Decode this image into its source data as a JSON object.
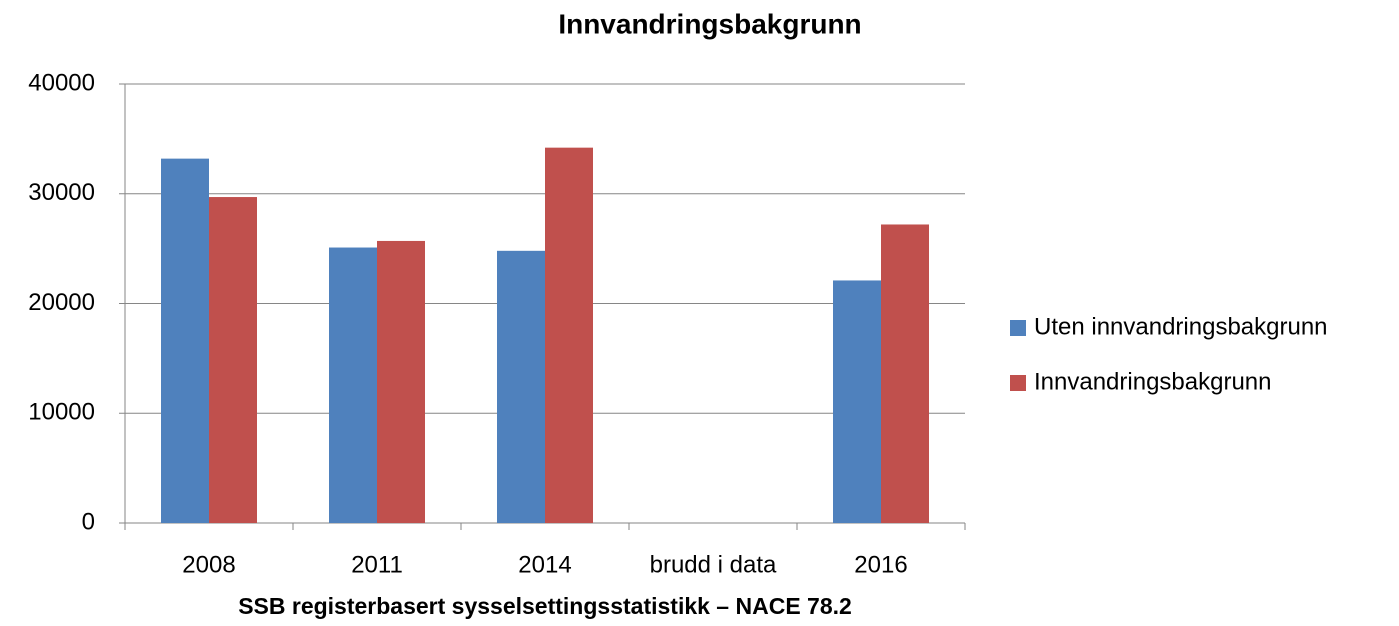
{
  "chart_data": {
    "type": "bar",
    "title": "Innvandringsbakgrunn",
    "x_label": "SSB registerbasert sysselsettingsstatistikk – NACE 78.2",
    "categories": [
      "2008",
      "2011",
      "2014",
      "brudd i data",
      "2016"
    ],
    "series": [
      {
        "name": "Uten innvandringsbakgrunn",
        "color": "#4f81bd",
        "values": [
          33200,
          25100,
          24800,
          null,
          22100
        ]
      },
      {
        "name": "Innvandringsbakgrunn",
        "color": "#c0504d",
        "values": [
          29700,
          25700,
          34200,
          null,
          27200
        ]
      }
    ],
    "ylim": [
      0,
      40000
    ],
    "yticks": [
      0,
      10000,
      20000,
      30000,
      40000
    ],
    "grid": true,
    "legend": "right"
  }
}
